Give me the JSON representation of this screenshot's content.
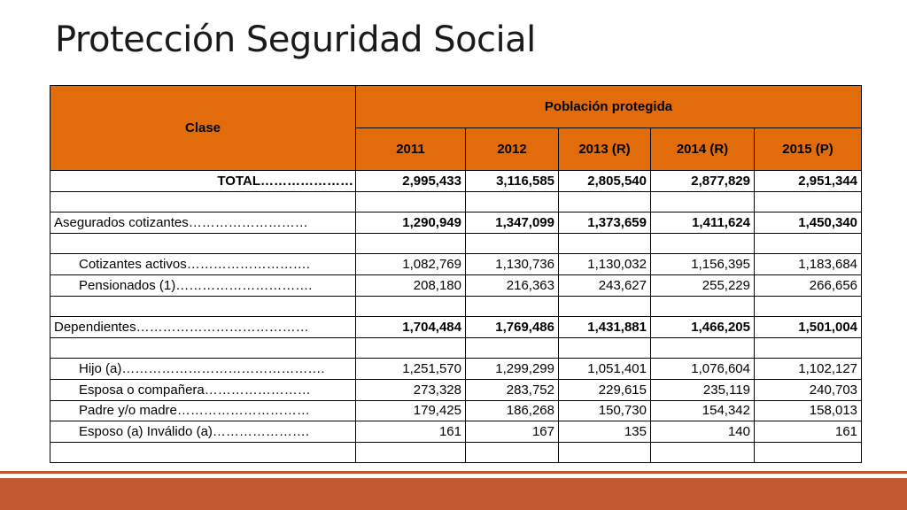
{
  "title": "Protección  Seguridad Social",
  "table": {
    "clase_header": "Clase",
    "group_header": "Población protegida",
    "years": [
      "2011",
      "2012",
      "2013 (R)",
      "2014 (R)",
      "2015 (P)"
    ],
    "rows": [
      {
        "label": "TOTAL…………………",
        "values": [
          "2,995,433",
          "3,116,585",
          "2,805,540",
          "2,877,829",
          "2,951,344"
        ]
      },
      {
        "label": "",
        "values": [
          "",
          "",
          "",
          "",
          ""
        ]
      },
      {
        "label": "Asegurados cotizantes………………………",
        "values": [
          "1,290,949",
          "1,347,099",
          "1,373,659",
          "1,411,624",
          "1,450,340"
        ]
      },
      {
        "label": "",
        "values": [
          "",
          "",
          "",
          "",
          ""
        ]
      },
      {
        "label": "Cotizantes activos……………………….",
        "values": [
          "1,082,769",
          "1,130,736",
          "1,130,032",
          "1,156,395",
          "1,183,684"
        ]
      },
      {
        "label": "Pensionados (1)………………………….",
        "values": [
          "208,180",
          "216,363",
          "243,627",
          "255,229",
          "266,656"
        ]
      },
      {
        "label": "",
        "values": [
          "",
          "",
          "",
          "",
          ""
        ]
      },
      {
        "label": "Dependientes…………………………………",
        "values": [
          "1,704,484",
          "1,769,486",
          "1,431,881",
          "1,466,205",
          "1,501,004"
        ]
      },
      {
        "label": "",
        "values": [
          "",
          "",
          "",
          "",
          ""
        ]
      },
      {
        "label": "Hijo (a)……………………………………….",
        "values": [
          "1,251,570",
          "1,299,299",
          "1,051,401",
          "1,076,604",
          "1,102,127"
        ]
      },
      {
        "label": "Esposa o compañera……………………",
        "values": [
          "273,328",
          "283,752",
          "229,615",
          "235,119",
          "240,703"
        ]
      },
      {
        "label": "Padre y/o madre…………………………",
        "values": [
          "179,425",
          "186,268",
          "150,730",
          "154,342",
          "158,013"
        ]
      },
      {
        "label": "Esposo (a) Inválido (a)………………….",
        "values": [
          "161",
          "167",
          "135",
          "140",
          "161"
        ]
      },
      {
        "label": "",
        "values": [
          "",
          "",
          "",
          "",
          ""
        ]
      }
    ]
  },
  "colors": {
    "header_fill": "#e36c0a",
    "accent_band": "#c0582f"
  }
}
